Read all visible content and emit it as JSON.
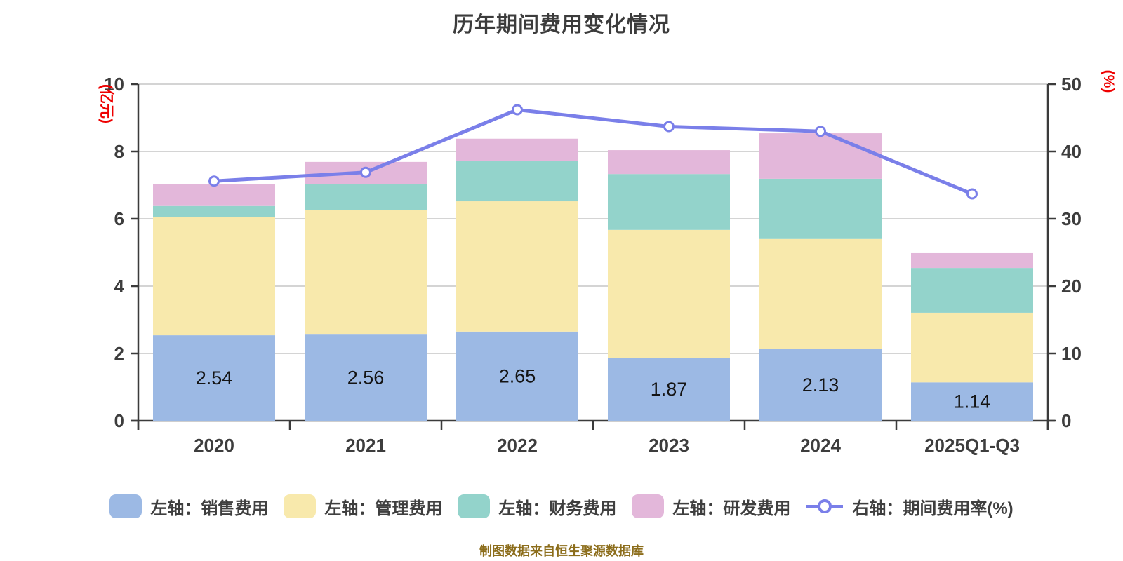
{
  "title": "历年期间费用变化情况",
  "source_note": "制图数据来自恒生聚源数据库",
  "colors": {
    "axis_line": "#3b3b3b",
    "grid_line": "#d4d4d4",
    "tick_label": "#3d3d3d",
    "axis_name": "#ee0000",
    "bar_value_label": "#141414",
    "source_note": "#8c6d1b",
    "title": "#3c3c3c"
  },
  "chart_data": {
    "type": "bar",
    "subtype": "stacked-bar-with-line",
    "title": "历年期间费用变化情况",
    "categories": [
      "2020",
      "2021",
      "2022",
      "2023",
      "2024",
      "2025Q1-Q3"
    ],
    "series": [
      {
        "key": "sales",
        "name": "左轴：销售费用",
        "type": "bar",
        "axis": "left",
        "color": "#9cb9e4",
        "values": [
          2.54,
          2.56,
          2.65,
          1.87,
          2.13,
          1.14
        ],
        "show_labels": true
      },
      {
        "key": "admin",
        "name": "左轴：管理费用",
        "type": "bar",
        "axis": "left",
        "color": "#f8e9ac",
        "values": [
          3.52,
          3.71,
          3.87,
          3.8,
          3.27,
          2.07
        ],
        "show_labels": false
      },
      {
        "key": "finance",
        "name": "左轴：财务费用",
        "type": "bar",
        "axis": "left",
        "color": "#93d3cb",
        "values": [
          0.32,
          0.77,
          1.19,
          1.66,
          1.79,
          1.33
        ],
        "show_labels": false
      },
      {
        "key": "rnd",
        "name": "左轴：研发费用",
        "type": "bar",
        "axis": "left",
        "color": "#e3b7da",
        "values": [
          0.66,
          0.65,
          0.67,
          0.71,
          1.35,
          0.44
        ],
        "show_labels": false
      },
      {
        "key": "rate",
        "name": "右轴：期间费用率(%)",
        "type": "line",
        "axis": "right",
        "color": "#7a7fe9",
        "values": [
          35.6,
          36.9,
          46.2,
          43.7,
          43.0,
          33.7
        ],
        "show_labels": false
      }
    ],
    "bar_totals": [
      7.04,
      7.69,
      8.38,
      8.04,
      8.54,
      4.98
    ],
    "left_axis": {
      "name": "(亿元)",
      "min": 0,
      "max": 10,
      "ticks": [
        0,
        2,
        4,
        6,
        8,
        10
      ]
    },
    "right_axis": {
      "name": "(%)",
      "min": 0,
      "max": 50,
      "ticks": [
        0,
        10,
        20,
        30,
        40,
        50
      ]
    },
    "grid": true,
    "legend_position": "bottom"
  }
}
